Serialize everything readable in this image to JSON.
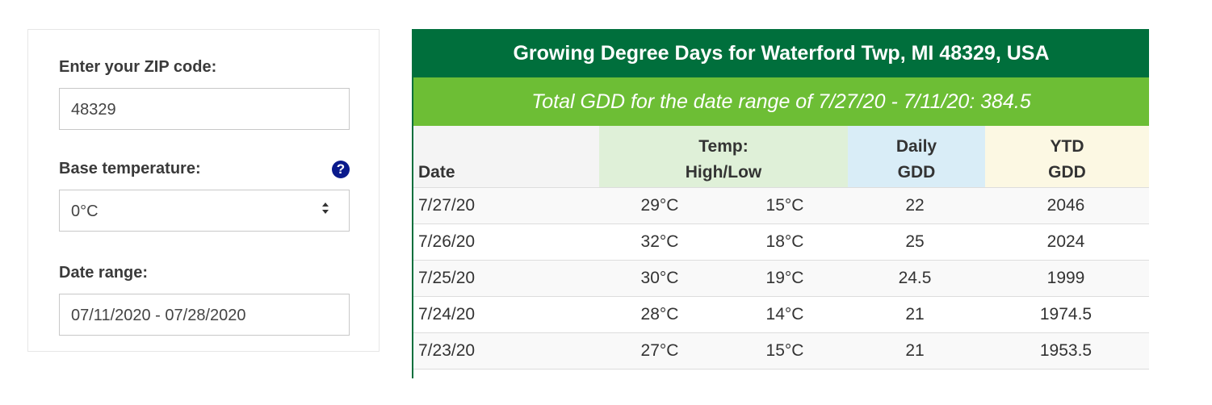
{
  "form": {
    "zip_label": "Enter your ZIP code:",
    "zip_value": "48329",
    "base_label": "Base temperature:",
    "help_icon": "?",
    "base_value": "0°C",
    "date_label": "Date range:",
    "date_value": "07/11/2020 - 07/28/2020"
  },
  "table": {
    "title": "Growing Degree Days for Waterford Twp, MI 48329, USA",
    "subtitle": "Total GDD for the date range of 7/27/20 - 7/11/20: 384.5",
    "headers": [
      [
        "Date"
      ],
      [
        "Temp:",
        "High/Low"
      ],
      [
        "Daily",
        "GDD"
      ],
      [
        "YTD",
        "GDD"
      ]
    ],
    "rows": [
      [
        "7/27/20",
        "29°C",
        "15°C",
        "22",
        "2046"
      ],
      [
        "7/26/20",
        "32°C",
        "18°C",
        "25",
        "2024"
      ],
      [
        "7/25/20",
        "30°C",
        "19°C",
        "24.5",
        "1999"
      ],
      [
        "7/24/20",
        "28°C",
        "14°C",
        "21",
        "1974.5"
      ],
      [
        "7/23/20",
        "27°C",
        "15°C",
        "21",
        "1953.5"
      ]
    ]
  }
}
